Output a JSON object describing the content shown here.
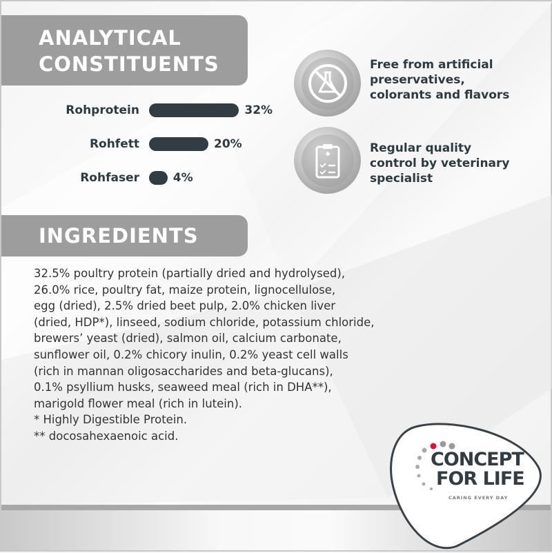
{
  "analytical": {
    "title_line1": "ANALYTICAL",
    "title_line2": "CONSTITUENTS",
    "items": [
      {
        "label": "Rohprotein",
        "value": 32,
        "text": "32%"
      },
      {
        "label": "Rohfett",
        "value": 20,
        "text": "20%"
      },
      {
        "label": "Rohfaser",
        "value": 4,
        "text": "4%"
      }
    ],
    "bar_color": "#333c42"
  },
  "features": [
    {
      "icon": "no-flask-icon",
      "lines": [
        "Free from artificial",
        "preservatives,",
        "colorants and flavors"
      ]
    },
    {
      "icon": "clipboard-check-icon",
      "lines": [
        "Regular quality",
        "control by veterinary",
        "specialist"
      ]
    }
  ],
  "ingredients": {
    "title": "INGREDIENTS",
    "lines": [
      "32.5% poultry protein (partially dried and hydrolysed),",
      "26.0% rice, poultry fat, maize protein, lignocellulose,",
      "egg (dried), 2.5% dried beet pulp, 2.0% chicken liver",
      "(dried, HDP*), linseed, sodium chloride, potassium chloride,",
      "brewers’ yeast (dried), salmon oil, calcium carbonate,",
      "sunflower oil, 0.2% chicory inulin, 0.2% yeast cell walls",
      "(rich in mannan oligosaccharides and beta-glucans),",
      "0.1% psyllium husks, seaweed meal (rich in DHA**),",
      "marigold flower meal (rich in lutein).",
      "* Highly Digestible Protein.",
      "** docosahexaenoic acid."
    ]
  },
  "logo": {
    "line1": "CONCEPT",
    "line2": "FOR LIFE",
    "tagline": "CARING EVERY DAY",
    "accent": "#d4143c"
  },
  "header_color": "#9d9d9d"
}
